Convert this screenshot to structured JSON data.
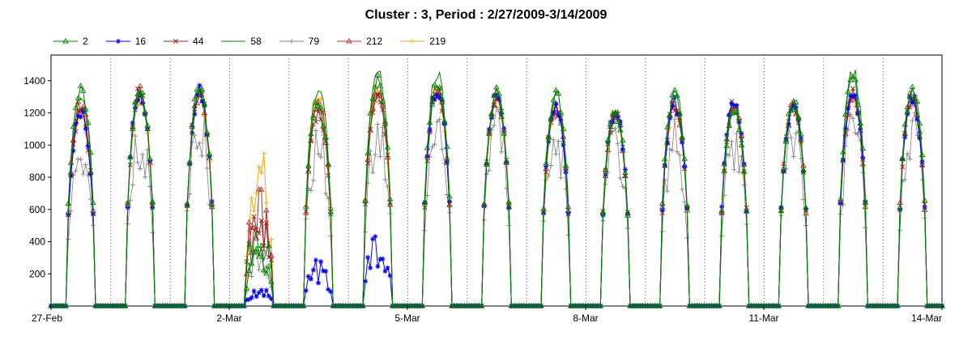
{
  "chart_data": {
    "type": "line",
    "title": "Cluster : 3, Period : 2/27/2009-3/14/2009",
    "xlabel": "",
    "ylabel": "",
    "ylim": [
      0,
      1560
    ],
    "y_ticks": [
      200,
      400,
      600,
      800,
      1000,
      1200,
      1400
    ],
    "x_range": [
      "2009-02-27",
      "2009-03-14"
    ],
    "x_ticks": [
      {
        "date": "2009-02-27",
        "label": "27-Feb"
      },
      {
        "date": "2009-03-02",
        "label": "2-Mar"
      },
      {
        "date": "2009-03-05",
        "label": "5-Mar"
      },
      {
        "date": "2009-03-08",
        "label": "8-Mar"
      },
      {
        "date": "2009-03-11",
        "label": "11-Mar"
      },
      {
        "date": "2009-03-14",
        "label": "14-Mar"
      }
    ],
    "grid": {
      "vertical_daily": true,
      "horizontal": false
    },
    "legend_position": "top-left",
    "day_window": {
      "sunrise_hour": 6,
      "sunset_hour": 18
    },
    "series": [
      {
        "name": "2",
        "color": "#008000",
        "marker": "triangle",
        "daily_peaks": [
          1400,
          1400,
          1400,
          400,
          1300,
          1450,
          1450,
          1380,
          1350,
          1250,
          1350,
          1250,
          1300,
          1450,
          1380
        ]
      },
      {
        "name": "16",
        "color": "#0000ff",
        "marker": "asterisk",
        "daily_peaks": [
          1250,
          1380,
          1380,
          120,
          300,
          500,
          1400,
          1350,
          1280,
          1250,
          1300,
          1300,
          1300,
          1380,
          1350
        ]
      },
      {
        "name": "44",
        "color": "#a02020",
        "marker": "x",
        "daily_peaks": [
          1250,
          1380,
          1380,
          750,
          1250,
          1380,
          1380,
          1350,
          1280,
          1250,
          1300,
          1300,
          1300,
          1380,
          1350
        ]
      },
      {
        "name": "58",
        "color": "#008000",
        "marker": "none",
        "daily_peaks": [
          1380,
          1380,
          1400,
          600,
          1400,
          1500,
          1500,
          1380,
          1380,
          1250,
          1380,
          1300,
          1300,
          1500,
          1380
        ]
      },
      {
        "name": "79",
        "color": "#808080",
        "marker": "plus",
        "daily_peaks": [
          1200,
          1200,
          1300,
          400,
          1200,
          1300,
          1300,
          1300,
          1250,
          1200,
          1250,
          1200,
          1250,
          1300,
          1300
        ]
      },
      {
        "name": "212",
        "color": "#b03030",
        "marker": "triangle",
        "daily_peaks": [
          1300,
          1380,
          1380,
          800,
          1300,
          1400,
          1400,
          1350,
          1280,
          1250,
          1300,
          1300,
          1300,
          1380,
          1350
        ]
      },
      {
        "name": "219",
        "color": "#ffa500",
        "marker": "plus",
        "daily_peaks": [
          1250,
          1350,
          1350,
          1050,
          1350,
          1400,
          1400,
          1330,
          1270,
          1240,
          1290,
          1280,
          1290,
          1350,
          1330
        ]
      }
    ]
  }
}
